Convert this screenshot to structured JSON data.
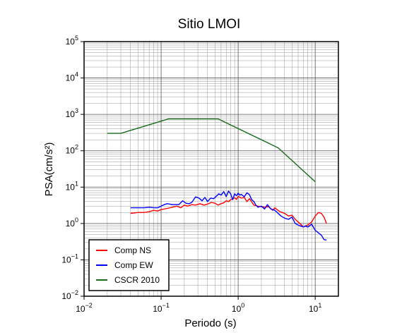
{
  "chart_data": {
    "type": "line",
    "title": "Sitio LMOI",
    "xlabel": "Periodo (s)",
    "ylabel": "PSA(cm/s²)",
    "xscale": "log",
    "yscale": "log",
    "xlim": [
      0.01,
      20
    ],
    "ylim": [
      0.01,
      100000
    ],
    "grid": true,
    "legend_position": "bottom-left",
    "x_ticks": [
      {
        "value": 0.01,
        "base": "10",
        "exp": "−2"
      },
      {
        "value": 0.1,
        "base": "10",
        "exp": "−1"
      },
      {
        "value": 1,
        "base": "10",
        "exp": "0"
      },
      {
        "value": 10,
        "base": "10",
        "exp": "1"
      }
    ],
    "y_ticks": [
      {
        "value": 0.01,
        "base": "10",
        "exp": "−2"
      },
      {
        "value": 0.1,
        "base": "10",
        "exp": "−1"
      },
      {
        "value": 1,
        "base": "10",
        "exp": "0"
      },
      {
        "value": 10,
        "base": "10",
        "exp": "1"
      },
      {
        "value": 100,
        "base": "10",
        "exp": "2"
      },
      {
        "value": 1000,
        "base": "10",
        "exp": "3"
      },
      {
        "value": 10000,
        "base": "10",
        "exp": "4"
      },
      {
        "value": 100000,
        "base": "10",
        "exp": "5"
      }
    ],
    "series": [
      {
        "name": "Comp NS",
        "color": "#ff0000",
        "x": [
          0.04,
          0.05,
          0.06,
          0.07,
          0.08,
          0.09,
          0.1,
          0.12,
          0.14,
          0.16,
          0.18,
          0.2,
          0.22,
          0.25,
          0.28,
          0.32,
          0.36,
          0.4,
          0.45,
          0.5,
          0.55,
          0.6,
          0.65,
          0.7,
          0.75,
          0.8,
          0.85,
          0.9,
          0.95,
          1.0,
          1.1,
          1.2,
          1.3,
          1.4,
          1.5,
          1.6,
          1.8,
          2.0,
          2.2,
          2.5,
          2.8,
          3.0,
          3.2,
          3.5,
          4.0,
          4.5,
          5.0,
          5.5,
          6.0,
          6.5,
          7.0,
          7.5,
          8.0,
          9.0,
          10.0,
          11.0,
          12.0,
          13.0,
          14.0
        ],
        "y": [
          1.9,
          2.0,
          2.0,
          2.1,
          2.3,
          2.2,
          2.4,
          2.6,
          2.8,
          3.0,
          2.7,
          3.2,
          3.0,
          3.3,
          3.2,
          3.5,
          3.2,
          3.4,
          3.8,
          3.6,
          3.2,
          3.5,
          3.7,
          4.2,
          4.0,
          4.5,
          4.8,
          5.1,
          4.6,
          5.6,
          5.0,
          5.2,
          4.0,
          4.8,
          3.9,
          3.2,
          3.0,
          2.9,
          2.8,
          2.9,
          2.3,
          2.7,
          2.4,
          2.1,
          1.9,
          1.6,
          1.7,
          1.3,
          1.1,
          0.95,
          0.8,
          0.85,
          0.9,
          1.1,
          1.6,
          2.0,
          1.9,
          1.5,
          1.0
        ]
      },
      {
        "name": "Comp EW",
        "color": "#0000ff",
        "x": [
          0.04,
          0.05,
          0.06,
          0.07,
          0.08,
          0.09,
          0.1,
          0.11,
          0.12,
          0.13,
          0.14,
          0.15,
          0.17,
          0.19,
          0.21,
          0.23,
          0.25,
          0.28,
          0.31,
          0.34,
          0.37,
          0.4,
          0.44,
          0.48,
          0.52,
          0.56,
          0.6,
          0.65,
          0.7,
          0.75,
          0.8,
          0.85,
          0.9,
          0.95,
          1.0,
          1.05,
          1.1,
          1.2,
          1.3,
          1.4,
          1.5,
          1.6,
          1.7,
          1.8,
          2.0,
          2.2,
          2.4,
          2.6,
          2.8,
          3.0,
          3.3,
          3.6,
          4.0,
          4.5,
          5.0,
          5.5,
          6.0,
          6.5,
          7.0,
          7.5,
          8.0,
          9.0,
          10.0,
          11.0,
          12.0,
          13.0,
          14.0
        ],
        "y": [
          2.7,
          2.7,
          2.7,
          2.8,
          2.7,
          2.7,
          3.0,
          3.3,
          3.5,
          3.4,
          3.3,
          3.3,
          3.3,
          4.2,
          3.6,
          3.5,
          3.8,
          5.4,
          5.0,
          4.2,
          5.2,
          4.0,
          5.0,
          4.8,
          5.6,
          6.5,
          6.0,
          7.5,
          5.5,
          7.8,
          6.5,
          4.5,
          6.5,
          5.8,
          6.8,
          6.0,
          6.3,
          5.4,
          7.0,
          6.2,
          4.5,
          4.0,
          3.2,
          2.8,
          3.0,
          2.5,
          3.3,
          2.6,
          2.4,
          2.3,
          1.9,
          1.6,
          1.4,
          1.3,
          1.5,
          1.0,
          0.9,
          0.85,
          0.8,
          0.85,
          0.8,
          0.95,
          0.65,
          0.55,
          0.48,
          0.36,
          0.35
        ]
      },
      {
        "name": "CSCR 2010",
        "color": "#1a6b1a",
        "x": [
          0.02,
          0.03,
          0.125,
          0.55,
          3.3,
          10.0
        ],
        "y": [
          300,
          300,
          750,
          750,
          120,
          14
        ]
      }
    ]
  }
}
